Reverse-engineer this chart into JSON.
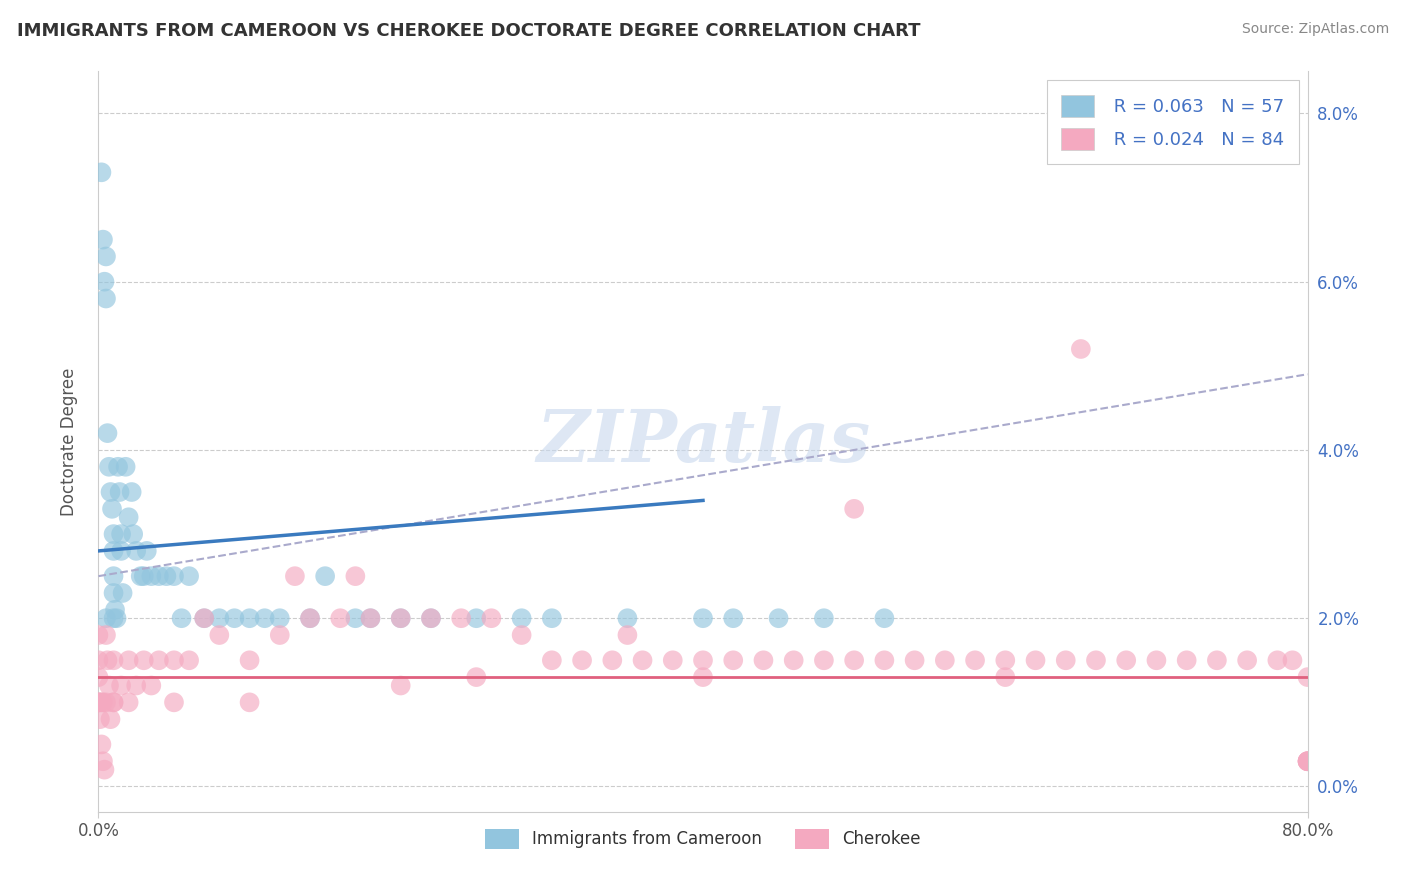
{
  "title": "IMMIGRANTS FROM CAMEROON VS CHEROKEE DOCTORATE DEGREE CORRELATION CHART",
  "source": "Source: ZipAtlas.com",
  "ylabel": "Doctorate Degree",
  "legend_blue_label": "Immigrants from Cameroon",
  "legend_pink_label": "Cherokee",
  "legend_blue_r": "R = 0.063",
  "legend_blue_n": "N = 57",
  "legend_pink_r": "R = 0.024",
  "legend_pink_n": "N = 84",
  "blue_color": "#92c5de",
  "pink_color": "#f4a9c0",
  "blue_line_color": "#3a7abf",
  "pink_line_color": "#e0607e",
  "gray_dashed_color": "#aaaacc",
  "watermark": "ZIPatlas",
  "xlim": [
    0.0,
    80.0
  ],
  "ylim": [
    -0.3,
    8.5
  ],
  "yticks": [
    0,
    2,
    4,
    6,
    8
  ],
  "ytick_labels": [
    "0.0%",
    "2.0%",
    "4.0%",
    "6.0%",
    "8.0%"
  ],
  "blue_scatter_x": [
    0.2,
    0.3,
    0.4,
    0.5,
    0.5,
    0.6,
    0.7,
    0.8,
    0.9,
    1.0,
    1.0,
    1.0,
    1.0,
    1.1,
    1.2,
    1.3,
    1.4,
    1.5,
    1.5,
    1.6,
    1.8,
    2.0,
    2.2,
    2.3,
    2.5,
    2.8,
    3.0,
    3.2,
    3.5,
    4.0,
    4.5,
    5.0,
    5.5,
    6.0,
    7.0,
    8.0,
    9.0,
    10.0,
    11.0,
    12.0,
    14.0,
    15.0,
    17.0,
    18.0,
    20.0,
    22.0,
    25.0,
    28.0,
    30.0,
    35.0,
    40.0,
    42.0,
    45.0,
    48.0,
    52.0,
    0.5,
    1.0
  ],
  "blue_scatter_y": [
    7.3,
    6.5,
    6.0,
    5.8,
    6.3,
    4.2,
    3.8,
    3.5,
    3.3,
    3.0,
    2.8,
    2.5,
    2.3,
    2.1,
    2.0,
    3.8,
    3.5,
    3.0,
    2.8,
    2.3,
    3.8,
    3.2,
    3.5,
    3.0,
    2.8,
    2.5,
    2.5,
    2.8,
    2.5,
    2.5,
    2.5,
    2.5,
    2.0,
    2.5,
    2.0,
    2.0,
    2.0,
    2.0,
    2.0,
    2.0,
    2.0,
    2.5,
    2.0,
    2.0,
    2.0,
    2.0,
    2.0,
    2.0,
    2.0,
    2.0,
    2.0,
    2.0,
    2.0,
    2.0,
    2.0,
    2.0,
    2.0
  ],
  "pink_scatter_x": [
    0.0,
    0.0,
    0.0,
    0.0,
    0.1,
    0.2,
    0.3,
    0.4,
    0.5,
    0.6,
    0.7,
    0.8,
    1.0,
    1.0,
    1.5,
    2.0,
    2.5,
    3.0,
    3.5,
    4.0,
    5.0,
    6.0,
    7.0,
    8.0,
    10.0,
    12.0,
    13.0,
    14.0,
    16.0,
    17.0,
    18.0,
    20.0,
    22.0,
    24.0,
    26.0,
    28.0,
    30.0,
    32.0,
    34.0,
    36.0,
    38.0,
    40.0,
    42.0,
    44.0,
    46.0,
    48.0,
    50.0,
    52.0,
    54.0,
    56.0,
    58.0,
    60.0,
    62.0,
    64.0,
    66.0,
    68.0,
    70.0,
    72.0,
    74.0,
    76.0,
    78.0,
    79.0,
    80.0,
    80.0,
    80.0,
    80.0,
    80.0,
    65.0,
    50.0,
    35.0,
    20.0,
    10.0,
    5.0,
    2.0,
    1.0,
    0.5,
    0.3,
    0.2,
    0.1,
    0.0,
    80.0,
    60.0,
    40.0,
    25.0
  ],
  "pink_scatter_y": [
    1.8,
    1.5,
    1.3,
    1.0,
    0.8,
    0.5,
    0.3,
    0.2,
    1.8,
    1.5,
    1.2,
    0.8,
    1.5,
    1.0,
    1.2,
    1.5,
    1.2,
    1.5,
    1.2,
    1.5,
    1.5,
    1.5,
    2.0,
    1.8,
    1.5,
    1.8,
    2.5,
    2.0,
    2.0,
    2.5,
    2.0,
    2.0,
    2.0,
    2.0,
    2.0,
    1.8,
    1.5,
    1.5,
    1.5,
    1.5,
    1.5,
    1.5,
    1.5,
    1.5,
    1.5,
    1.5,
    1.5,
    1.5,
    1.5,
    1.5,
    1.5,
    1.5,
    1.5,
    1.5,
    1.5,
    1.5,
    1.5,
    1.5,
    1.5,
    1.5,
    1.5,
    1.5,
    0.3,
    0.3,
    0.3,
    0.3,
    0.3,
    5.2,
    3.3,
    1.8,
    1.2,
    1.0,
    1.0,
    1.0,
    1.0,
    1.0,
    1.0,
    1.0,
    1.0,
    1.0,
    1.3,
    1.3,
    1.3,
    1.3
  ],
  "blue_line_x": [
    0.0,
    40.0
  ],
  "blue_line_y": [
    2.8,
    3.4
  ],
  "gray_dashed_line_x": [
    0.0,
    80.0
  ],
  "gray_dashed_line_y": [
    2.5,
    4.9
  ],
  "pink_line_x": [
    0.0,
    80.0
  ],
  "pink_line_y": [
    1.3,
    1.3
  ]
}
